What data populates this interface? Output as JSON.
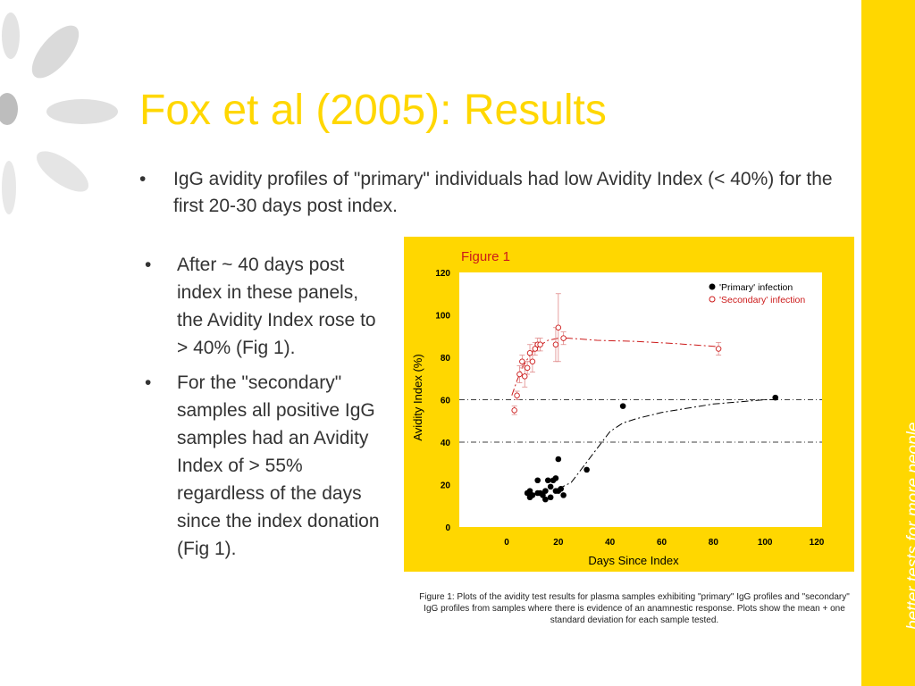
{
  "slide": {
    "title": "Fox et al (2005): Results",
    "bullet_top": "IgG avidity profiles of  \"primary\" individuals had low Avidity Index (< 40%) for the first 20-30 days post index.",
    "bullets_left": [
      "After ~ 40 days post index in these panels, the Avidity Index rose to > 40% (Fig 1).",
      "For the \"secondary\" samples all positive IgG samples had an Avidity Index of > 55% regardless of the days since the index donation (Fig 1)."
    ],
    "bullet_symbol": "•",
    "tagline": "better tests for more people",
    "caption": "Figure 1:  Plots of the avidity test results for plasma samples exhibiting \"primary\" IgG profiles and \"secondary\" IgG profiles from samples where there is evidence of an anamnestic response.  Plots show the mean + one standard deviation for each sample tested.",
    "colors": {
      "accent": "#FFD700",
      "text": "#333333",
      "red": "#cc1a1a",
      "decor_gray": "#d9d9d9"
    }
  },
  "chart_data": {
    "type": "scatter",
    "title": "Figure 1",
    "xlabel": "Days Since Index",
    "ylabel": "Avidity Index (%)",
    "xlim": [
      0,
      120
    ],
    "ylim": [
      0,
      120
    ],
    "x_ticks": [
      0,
      20,
      40,
      60,
      80,
      100,
      120
    ],
    "y_ticks": [
      0,
      20,
      40,
      60,
      80,
      100,
      120
    ],
    "reference_lines": [
      40,
      60
    ],
    "legend_position": "top-right",
    "series": [
      {
        "name": "'Primary' infection",
        "marker": "filled",
        "color": "#000000",
        "points": [
          [
            8,
            16
          ],
          [
            9,
            14
          ],
          [
            9,
            17
          ],
          [
            10,
            15
          ],
          [
            12,
            16
          ],
          [
            12,
            22
          ],
          [
            13,
            16
          ],
          [
            14,
            15
          ],
          [
            15,
            17
          ],
          [
            15,
            13
          ],
          [
            16,
            22
          ],
          [
            17,
            14
          ],
          [
            17,
            19
          ],
          [
            18,
            22
          ],
          [
            19,
            23
          ],
          [
            19,
            17
          ],
          [
            20,
            32
          ],
          [
            20,
            17
          ],
          [
            21,
            18
          ],
          [
            22,
            15
          ],
          [
            31,
            27
          ],
          [
            45,
            57
          ],
          [
            104,
            61
          ]
        ],
        "fit": [
          [
            20,
            18
          ],
          [
            25,
            21
          ],
          [
            30,
            29
          ],
          [
            35,
            37
          ],
          [
            40,
            45
          ],
          [
            45,
            49
          ],
          [
            50,
            51
          ],
          [
            60,
            54
          ],
          [
            70,
            56
          ],
          [
            80,
            58
          ],
          [
            90,
            59
          ],
          [
            100,
            60
          ],
          [
            104,
            60
          ]
        ]
      },
      {
        "name": "'Secondary' infection",
        "marker": "open",
        "color": "#cc1a1a",
        "points": [
          [
            3,
            55,
            2
          ],
          [
            4,
            62,
            2
          ],
          [
            5,
            72,
            4
          ],
          [
            6,
            78,
            3
          ],
          [
            7,
            71,
            5
          ],
          [
            8,
            75,
            3
          ],
          [
            9,
            82,
            4
          ],
          [
            10,
            78,
            5
          ],
          [
            11,
            84,
            3
          ],
          [
            12,
            86,
            3
          ],
          [
            13,
            86,
            3
          ],
          [
            19,
            86,
            8
          ],
          [
            20,
            94,
            16
          ],
          [
            22,
            89,
            3
          ],
          [
            82,
            84,
            3
          ]
        ],
        "fit": [
          [
            2,
            62
          ],
          [
            4,
            69
          ],
          [
            6,
            75
          ],
          [
            9,
            81
          ],
          [
            12,
            85
          ],
          [
            16,
            88
          ],
          [
            20,
            89
          ],
          [
            24,
            89
          ],
          [
            35,
            88
          ],
          [
            50,
            87.5
          ],
          [
            65,
            86.5
          ],
          [
            82,
            85
          ]
        ]
      }
    ]
  }
}
